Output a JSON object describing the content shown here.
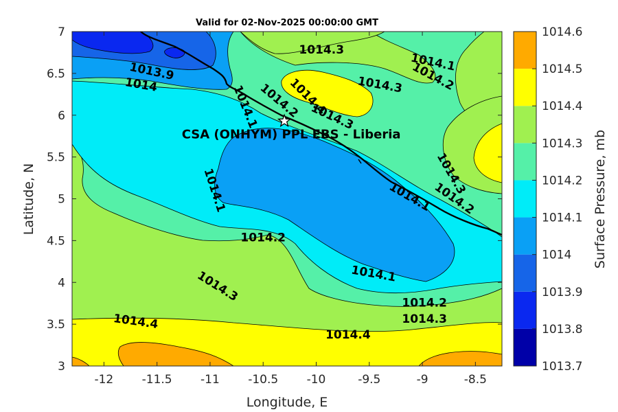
{
  "chart_data": {
    "type": "contour",
    "title": "Valid for 02-Nov-2025 00:00:00 GMT",
    "xlabel": "Longitude, E",
    "ylabel": "Latitude, N",
    "xlim": [
      -12.3,
      -8.25
    ],
    "ylim": [
      3,
      7
    ],
    "xticks": [
      -12,
      -11.5,
      -11,
      -10.5,
      -10,
      -9.5,
      -9,
      -8.5
    ],
    "xtick_labels": [
      "-12",
      "-11.5",
      "-11",
      "-10.5",
      "-10",
      "-9.5",
      "-9",
      "-8.5"
    ],
    "yticks": [
      3,
      3.5,
      4,
      4.5,
      5,
      5.5,
      6,
      6.5,
      7
    ],
    "ytick_labels": [
      "3",
      "3.5",
      "4",
      "4.5",
      "5",
      "5.5",
      "6",
      "6.5",
      "7"
    ],
    "colorbar": {
      "label": "Surface Pressure, mb",
      "levels": [
        1013.7,
        1013.8,
        1013.9,
        1014,
        1014.1,
        1014.2,
        1014.3,
        1014.4,
        1014.5,
        1014.6
      ],
      "level_labels": [
        "1013.7",
        "1013.8",
        "1013.9",
        "1014",
        "1014.1",
        "1014.2",
        "1014.3",
        "1014.4",
        "1014.5",
        "1014.6"
      ],
      "colors": [
        "#0000a8",
        "#0a28f0",
        "#1665e8",
        "#0aa0f5",
        "#00ecf8",
        "#55f0a8",
        "#a0f050",
        "#ffff00",
        "#ffaa00",
        "#ff5500"
      ]
    },
    "contour_labels": [
      {
        "text": "1014.3",
        "lon": -9.95,
        "lat": 6.78,
        "rotate": 0
      },
      {
        "text": "1014.1",
        "lon": -8.9,
        "lat": 6.63,
        "rotate": 12
      },
      {
        "text": "1014.2",
        "lon": -8.9,
        "lat": 6.46,
        "rotate": 28
      },
      {
        "text": "1013.9",
        "lon": -11.55,
        "lat": 6.52,
        "rotate": 12
      },
      {
        "text": "1014",
        "lon": -11.65,
        "lat": 6.36,
        "rotate": 10
      },
      {
        "text": "1014.3",
        "lon": -9.4,
        "lat": 6.36,
        "rotate": 10
      },
      {
        "text": "1014.1",
        "lon": -10.67,
        "lat": 6.1,
        "rotate": 68
      },
      {
        "text": "1014.2",
        "lon": -10.35,
        "lat": 6.17,
        "rotate": 40
      },
      {
        "text": "1014.4",
        "lon": -10.08,
        "lat": 6.22,
        "rotate": 45
      },
      {
        "text": "1014.3",
        "lon": -9.85,
        "lat": 5.98,
        "rotate": 25
      },
      {
        "text": "1014.3",
        "lon": -8.73,
        "lat": 5.3,
        "rotate": 60
      },
      {
        "text": "1014.2",
        "lon": -8.7,
        "lat": 5.0,
        "rotate": 35
      },
      {
        "text": "1014.1",
        "lon": -9.12,
        "lat": 5.02,
        "rotate": 30
      },
      {
        "text": "1014.1",
        "lon": -10.96,
        "lat": 5.1,
        "rotate": 72
      },
      {
        "text": "1014.2",
        "lon": -10.5,
        "lat": 4.53,
        "rotate": 0
      },
      {
        "text": "1014.1",
        "lon": -9.46,
        "lat": 4.1,
        "rotate": 10
      },
      {
        "text": "1014.3",
        "lon": -10.93,
        "lat": 3.95,
        "rotate": 32
      },
      {
        "text": "1014.2",
        "lon": -8.98,
        "lat": 3.75,
        "rotate": 0
      },
      {
        "text": "1014.3",
        "lon": -8.98,
        "lat": 3.56,
        "rotate": 0
      },
      {
        "text": "1014.4",
        "lon": -11.7,
        "lat": 3.53,
        "rotate": 8
      },
      {
        "text": "1014.4",
        "lon": -9.7,
        "lat": 3.37,
        "rotate": 0
      }
    ],
    "site": {
      "name": "CSA (ONHYM) PPL EBS - Liberia",
      "lon": -10.3,
      "lat": 5.93
    }
  }
}
